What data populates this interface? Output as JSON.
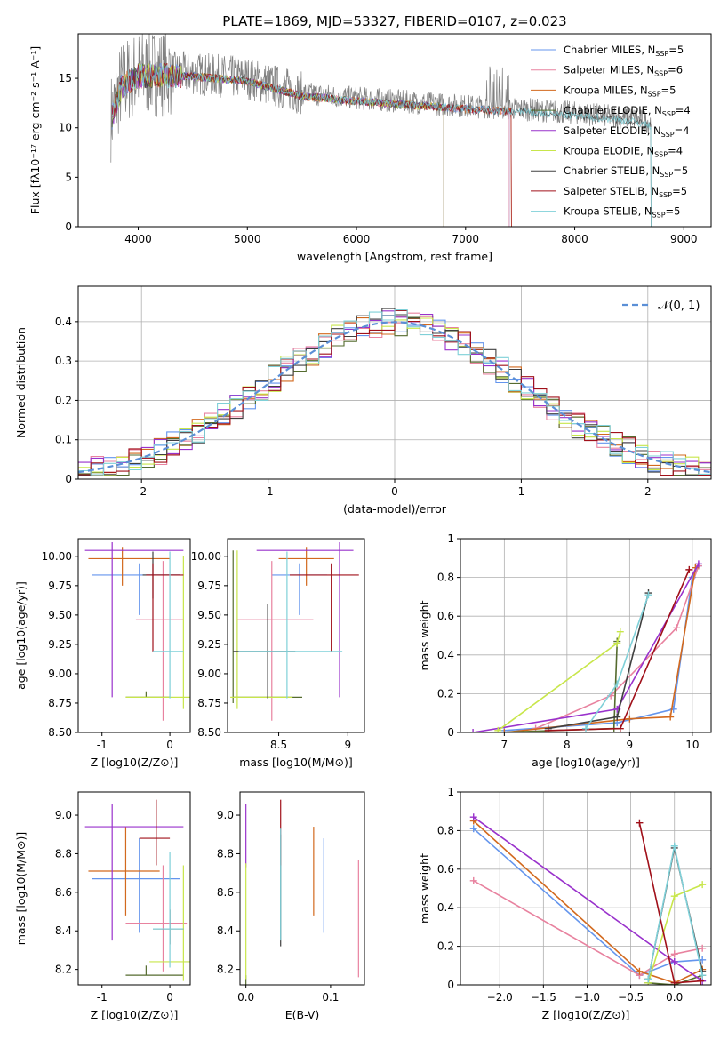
{
  "figure_title": "PLATE=1869, MJD=53327, FIBERID=0107, z=0.023",
  "colors": {
    "Chabrier MILES": "#6495ED",
    "Salpeter MILES": "#E8829F",
    "Kroupa MILES": "#D2691E",
    "Chabrier ELODIE": "#556B2F",
    "Salpeter ELODIE": "#9932CC",
    "Kroupa ELODIE": "#C8E64B",
    "Chabrier STELIB": "#404040",
    "Salpeter STELIB": "#A0101A",
    "Kroupa STELIB": "#7FD0D8",
    "data": "#808080",
    "normal": "#5B8FD6"
  },
  "chart_data": [
    {
      "id": "spectrum",
      "type": "line",
      "title": "PLATE=1869, MJD=53327, FIBERID=0107, z=0.023",
      "xlabel": "wavelength [Angstrom, rest frame]",
      "ylabel": "Flux [fλ10⁻¹⁷ erg cm⁻² s⁻¹ A⁻¹]",
      "xlim": [
        3450,
        9250
      ],
      "ylim": [
        0,
        19.5
      ],
      "xticks": [
        4000,
        5000,
        6000,
        7000,
        8000,
        9000
      ],
      "yticks": [
        0,
        5,
        10,
        15
      ],
      "grid": false,
      "legend_position": "top-right",
      "legend": [
        {
          "model": "Chabrier MILES",
          "label": "Chabrier MILES, N_SSP=5"
        },
        {
          "model": "Salpeter MILES",
          "label": "Salpeter MILES, N_SSP=6"
        },
        {
          "model": "Kroupa MILES",
          "label": "Kroupa MILES, N_SSP=5"
        },
        {
          "model": "Chabrier ELODIE",
          "label": "Chabrier ELODIE, N_SSP=4"
        },
        {
          "model": "Salpeter ELODIE",
          "label": "Salpeter ELODIE, N_SSP=4"
        },
        {
          "model": "Kroupa ELODIE",
          "label": "Kroupa ELODIE, N_SSP=4"
        },
        {
          "model": "Chabrier STELIB",
          "label": "Chabrier STELIB, N_SSP=5"
        },
        {
          "model": "Salpeter STELIB",
          "label": "Salpeter STELIB, N_SSP=5"
        },
        {
          "model": "Kroupa STELIB",
          "label": "Kroupa STELIB, N_SSP=5"
        }
      ],
      "continuum": [
        [
          3750,
          11
        ],
        [
          3850,
          14.5
        ],
        [
          4000,
          15.5
        ],
        [
          4200,
          15.6
        ],
        [
          4500,
          15.5
        ],
        [
          5000,
          15.0
        ],
        [
          5500,
          13.5
        ],
        [
          6000,
          13.0
        ],
        [
          6500,
          12.6
        ],
        [
          7000,
          12.2
        ],
        [
          7500,
          11.9
        ],
        [
          8000,
          11.5
        ],
        [
          8500,
          11.0
        ],
        [
          8700,
          10.5
        ]
      ]
    },
    {
      "id": "residual-hist",
      "type": "histogram",
      "xlabel": "(data-model)/error",
      "ylabel": "Normed distribution",
      "xlim": [
        -2.5,
        2.5
      ],
      "ylim": [
        0,
        0.49
      ],
      "xticks": [
        -2,
        -1,
        0,
        1,
        2
      ],
      "yticks": [
        0.0,
        0.1,
        0.2,
        0.3,
        0.4
      ],
      "grid": true,
      "legend_position": "top-right",
      "legend": [
        {
          "label": "𝒩(0, 1)"
        }
      ],
      "bin_width": 0.1
    },
    {
      "id": "age-vs-Z",
      "type": "errorbar",
      "xlabel": "Z [log10(Z/Z⊙)]",
      "ylabel": "age  [log10(age/yr)]",
      "xlim": [
        -1.35,
        0.3
      ],
      "ylim": [
        8.5,
        10.15
      ],
      "xticks": [
        -1,
        0
      ],
      "yticks": [
        8.5,
        8.75,
        9.0,
        9.25,
        9.5,
        9.75,
        10.0
      ],
      "ytick_labels": [
        "8.50",
        "8.75",
        "9.00",
        "9.25",
        "9.50",
        "9.75",
        "10.00"
      ],
      "points": [
        {
          "model": "Chabrier MILES",
          "x": -0.45,
          "xerr": [
            0.7,
            0.6
          ],
          "y": 9.84,
          "yerr": [
            0.34,
            0.1
          ]
        },
        {
          "model": "Salpeter MILES",
          "x": -0.1,
          "xerr": [
            0.4,
            0.3
          ],
          "y": 9.46,
          "yerr": [
            0.86,
            0.5
          ]
        },
        {
          "model": "Kroupa MILES",
          "x": -0.7,
          "xerr": [
            0.5,
            0.7
          ],
          "y": 9.98,
          "yerr": [
            0.23,
            0.1
          ]
        },
        {
          "model": "Chabrier ELODIE",
          "x": -0.35,
          "xerr": [
            0.3,
            0.35
          ],
          "y": 8.8,
          "yerr": [
            0.0,
            0.05
          ]
        },
        {
          "model": "Salpeter ELODIE",
          "x": -0.85,
          "xerr": [
            0.4,
            1.05
          ],
          "y": 10.05,
          "yerr": [
            1.25,
            0.07
          ]
        },
        {
          "model": "Kroupa ELODIE",
          "x": 0.2,
          "xerr": [
            0.85,
            0.1
          ],
          "y": 8.8,
          "yerr": [
            0.1,
            1.2
          ]
        },
        {
          "model": "Chabrier STELIB",
          "x": -0.25,
          "xerr": [
            0.15,
            0.4
          ],
          "y": 9.84,
          "yerr": [
            0.2,
            0.2
          ]
        },
        {
          "model": "Salpeter STELIB",
          "x": -0.25,
          "xerr": [
            0.1,
            0.45
          ],
          "y": 9.84,
          "yerr": [
            0.65,
            0.1
          ]
        },
        {
          "model": "Kroupa STELIB",
          "x": 0.0,
          "xerr": [
            0.25,
            0.2
          ],
          "y": 9.19,
          "yerr": [
            0.4,
            0.85
          ]
        }
      ]
    },
    {
      "id": "age-vs-mass",
      "type": "errorbar",
      "xlabel": "mass [log10(M/M⊙)]",
      "ylabel": "",
      "xlim": [
        8.13,
        9.12
      ],
      "ylim": [
        8.5,
        10.15
      ],
      "xticks": [
        8.5,
        9.0
      ],
      "yticks": [
        8.5,
        8.75,
        9.0,
        9.25,
        9.5,
        9.75,
        10.0
      ],
      "ytick_labels": [
        "8.50",
        "8.75",
        "9.00",
        "9.25",
        "9.50",
        "9.75",
        "10.00"
      ],
      "points": [
        {
          "model": "Chabrier MILES",
          "x": 8.65,
          "xerr": [
            0.2,
            0.2
          ],
          "y": 9.84,
          "yerr": [
            0.34,
            0.1
          ]
        },
        {
          "model": "Salpeter MILES",
          "x": 8.45,
          "xerr": [
            0.25,
            0.3
          ],
          "y": 9.46,
          "yerr": [
            0.86,
            0.5
          ]
        },
        {
          "model": "Kroupa MILES",
          "x": 8.7,
          "xerr": [
            0.2,
            0.2
          ],
          "y": 9.98,
          "yerr": [
            0.23,
            0.1
          ]
        },
        {
          "model": "Chabrier ELODIE",
          "x": 8.17,
          "xerr": [
            0.0,
            0.5
          ],
          "y": 8.8,
          "yerr": [
            0.05,
            1.25
          ]
        },
        {
          "model": "Salpeter ELODIE",
          "x": 8.94,
          "xerr": [
            0.6,
            0.1
          ],
          "y": 10.05,
          "yerr": [
            1.25,
            0.07
          ]
        },
        {
          "model": "Kroupa ELODIE",
          "x": 8.2,
          "xerr": [
            0.05,
            0.4
          ],
          "y": 8.8,
          "yerr": [
            0.1,
            1.25
          ]
        },
        {
          "model": "Chabrier STELIB",
          "x": 8.42,
          "xerr": [
            0.25,
            0.2
          ],
          "y": 9.19,
          "yerr": [
            0.4,
            0.4
          ]
        },
        {
          "model": "Salpeter STELIB",
          "x": 8.88,
          "xerr": [
            0.3,
            0.2
          ],
          "y": 9.84,
          "yerr": [
            0.65,
            0.1
          ]
        },
        {
          "model": "Kroupa STELIB",
          "x": 8.56,
          "xerr": [
            0.35,
            0.4
          ],
          "y": 9.19,
          "yerr": [
            0.4,
            0.85
          ]
        }
      ]
    },
    {
      "id": "weight-vs-age",
      "type": "line",
      "xlabel": "age  [log10(age/yr)]",
      "ylabel": "mass weight",
      "xlim": [
        6.3,
        10.3
      ],
      "ylim": [
        0,
        1.0
      ],
      "xticks": [
        7,
        8,
        9,
        10
      ],
      "yticks": [
        0.0,
        0.2,
        0.4,
        0.6,
        0.8,
        1.0
      ],
      "grid": true,
      "series": [
        {
          "model": "Chabrier MILES",
          "x": [
            7.0,
            8.8,
            9.7,
            10.0,
            10.1
          ],
          "y": [
            0.01,
            0.05,
            0.12,
            0.8,
            0.86
          ]
        },
        {
          "model": "Salpeter MILES",
          "x": [
            7.5,
            8.7,
            9.75,
            10.1
          ],
          "y": [
            0.02,
            0.19,
            0.54,
            0.86
          ]
        },
        {
          "model": "Kroupa MILES",
          "x": [
            7.0,
            9.0,
            9.65,
            10.05
          ],
          "y": [
            0.0,
            0.07,
            0.08,
            0.85
          ]
        },
        {
          "model": "Chabrier ELODIE",
          "x": [
            6.9,
            8.75,
            8.8
          ],
          "y": [
            0.0,
            0.02,
            0.47
          ]
        },
        {
          "model": "Salpeter ELODIE",
          "x": [
            6.5,
            8.8,
            10.1
          ],
          "y": [
            0.0,
            0.12,
            0.87
          ]
        },
        {
          "model": "Kroupa ELODIE",
          "x": [
            6.9,
            8.8,
            8.85
          ],
          "y": [
            0.01,
            0.46,
            0.52
          ]
        },
        {
          "model": "Chabrier STELIB",
          "x": [
            7.7,
            8.8,
            9.3
          ],
          "y": [
            0.02,
            0.08,
            0.72
          ]
        },
        {
          "model": "Salpeter STELIB",
          "x": [
            7.7,
            8.85,
            9.95
          ],
          "y": [
            0.01,
            0.02,
            0.84
          ]
        },
        {
          "model": "Kroupa STELIB",
          "x": [
            8.3,
            8.8,
            9.3
          ],
          "y": [
            0.02,
            0.25,
            0.71
          ]
        }
      ]
    },
    {
      "id": "mass-vs-Z",
      "type": "errorbar",
      "xlabel": "Z [log10(Z/Z⊙)]",
      "ylabel": "mass [log10(M/M⊙)]",
      "xlim": [
        -1.35,
        0.3
      ],
      "ylim": [
        8.12,
        9.12
      ],
      "xticks": [
        -1,
        0
      ],
      "yticks": [
        8.2,
        8.4,
        8.6,
        8.8,
        9.0
      ],
      "ytick_labels": [
        "8.2",
        "8.4",
        "8.6",
        "8.8",
        "9.0"
      ],
      "points": [
        {
          "model": "Chabrier MILES",
          "x": -0.45,
          "xerr": [
            0.7,
            0.6
          ],
          "y": 8.67,
          "yerr": [
            0.28,
            0.21
          ]
        },
        {
          "model": "Salpeter MILES",
          "x": -0.1,
          "xerr": [
            0.55,
            0.35
          ],
          "y": 8.44,
          "yerr": [
            0.25,
            0.3
          ]
        },
        {
          "model": "Kroupa MILES",
          "x": -0.65,
          "xerr": [
            0.55,
            0.5
          ],
          "y": 8.71,
          "yerr": [
            0.23,
            0.23
          ]
        },
        {
          "model": "Chabrier ELODIE",
          "x": -0.35,
          "xerr": [
            0.3,
            0.55
          ],
          "y": 8.17,
          "yerr": [
            0.0,
            0.05
          ]
        },
        {
          "model": "Salpeter ELODIE",
          "x": -0.85,
          "xerr": [
            0.4,
            1.05
          ],
          "y": 8.94,
          "yerr": [
            0.59,
            0.12
          ]
        },
        {
          "model": "Kroupa ELODIE",
          "x": 0.2,
          "xerr": [
            0.5,
            0.1
          ],
          "y": 8.24,
          "yerr": [
            0.1,
            0.5
          ]
        },
        {
          "model": "Chabrier STELIB",
          "x": 0.0,
          "xerr": [
            0.25,
            0.2
          ],
          "y": 8.41,
          "yerr": [
            0.08,
            0.1
          ]
        },
        {
          "model": "Salpeter STELIB",
          "x": -0.2,
          "xerr": [
            0.25,
            0.2
          ],
          "y": 8.88,
          "yerr": [
            0.14,
            0.2
          ]
        },
        {
          "model": "Kroupa STELIB",
          "x": 0.0,
          "xerr": [
            0.25,
            0.2
          ],
          "y": 8.41,
          "yerr": [
            0.2,
            0.4
          ]
        }
      ]
    },
    {
      "id": "mass-vs-EBV",
      "type": "errorbar",
      "xlabel": "E(B-V)",
      "ylabel": "",
      "xlim": [
        -0.007,
        0.14
      ],
      "ylim": [
        8.12,
        9.12
      ],
      "xticks": [
        0.0,
        0.1
      ],
      "xtick_labels": [
        "0.0",
        "0.1"
      ],
      "yticks": [
        8.2,
        8.4,
        8.6,
        8.8,
        9.0
      ],
      "ytick_labels": [
        "8.2",
        "8.4",
        "8.6",
        "8.8",
        "9.0"
      ],
      "points": [
        {
          "model": "Chabrier MILES",
          "x": 0.092,
          "xerr": [
            0,
            0
          ],
          "y": 8.67,
          "yerr": [
            0.28,
            0.21
          ]
        },
        {
          "model": "Salpeter MILES",
          "x": 0.133,
          "xerr": [
            0,
            0
          ],
          "y": 8.44,
          "yerr": [
            0.28,
            0.33
          ]
        },
        {
          "model": "Kroupa MILES",
          "x": 0.08,
          "xerr": [
            0,
            0
          ],
          "y": 8.71,
          "yerr": [
            0.23,
            0.23
          ]
        },
        {
          "model": "Chabrier ELODIE",
          "x": 0.0,
          "xerr": [
            0,
            0
          ],
          "y": 8.17,
          "yerr": [
            0.05,
            0.0
          ]
        },
        {
          "model": "Salpeter ELODIE",
          "x": 0.0,
          "xerr": [
            0,
            0
          ],
          "y": 8.94,
          "yerr": [
            0.21,
            0.12
          ]
        },
        {
          "model": "Kroupa ELODIE",
          "x": 0.0,
          "xerr": [
            0,
            0
          ],
          "y": 8.45,
          "yerr": [
            0.3,
            0.3
          ]
        },
        {
          "model": "Chabrier STELIB",
          "x": 0.041,
          "xerr": [
            0,
            0
          ],
          "y": 8.6,
          "yerr": [
            0.28,
            0.3
          ]
        },
        {
          "model": "Salpeter STELIB",
          "x": 0.041,
          "xerr": [
            0,
            0
          ],
          "y": 8.88,
          "yerr": [
            0.14,
            0.2
          ]
        },
        {
          "model": "Kroupa STELIB",
          "x": 0.041,
          "xerr": [
            0,
            0
          ],
          "y": 8.7,
          "yerr": [
            0.35,
            0.23
          ]
        }
      ]
    },
    {
      "id": "weight-vs-Z",
      "type": "line",
      "xlabel": "Z [log10(Z/Z⊙)]",
      "ylabel": "mass weight",
      "xlim": [
        -2.45,
        0.42
      ],
      "ylim": [
        0,
        1.0
      ],
      "xticks": [
        -2.0,
        -1.5,
        -1.0,
        -0.5,
        0.0
      ],
      "xtick_labels": [
        "−2.0",
        "−1.5",
        "−1.0",
        "−0.5",
        "0.0"
      ],
      "yticks": [
        0.0,
        0.2,
        0.4,
        0.6,
        0.8,
        1.0
      ],
      "grid": true,
      "series": [
        {
          "model": "Chabrier MILES",
          "x": [
            -2.3,
            -0.4,
            0.0,
            0.32
          ],
          "y": [
            0.81,
            0.05,
            0.12,
            0.13
          ]
        },
        {
          "model": "Salpeter MILES",
          "x": [
            -2.3,
            -0.4,
            0.0,
            0.32
          ],
          "y": [
            0.54,
            0.05,
            0.16,
            0.19
          ]
        },
        {
          "model": "Kroupa MILES",
          "x": [
            -2.3,
            -0.4,
            0.0,
            0.32
          ],
          "y": [
            0.85,
            0.07,
            0.01,
            0.08
          ]
        },
        {
          "model": "Chabrier ELODIE",
          "x": [
            -0.3,
            0.0,
            0.32
          ],
          "y": [
            0.01,
            0.0,
            0.05
          ]
        },
        {
          "model": "Salpeter ELODIE",
          "x": [
            -2.3,
            0.0,
            0.32
          ],
          "y": [
            0.87,
            0.12,
            0.02
          ]
        },
        {
          "model": "Kroupa ELODIE",
          "x": [
            -0.3,
            0.0,
            0.32
          ],
          "y": [
            0.01,
            0.46,
            0.52
          ]
        },
        {
          "model": "Chabrier STELIB",
          "x": [
            -0.3,
            0.0,
            0.32
          ],
          "y": [
            0.03,
            0.71,
            0.07
          ]
        },
        {
          "model": "Salpeter STELIB",
          "x": [
            -0.4,
            0.0,
            0.3
          ],
          "y": [
            0.84,
            0.01,
            0.02
          ]
        },
        {
          "model": "Kroupa STELIB",
          "x": [
            -0.3,
            0.0,
            0.32
          ],
          "y": [
            0.03,
            0.72,
            0.05
          ]
        }
      ]
    }
  ]
}
